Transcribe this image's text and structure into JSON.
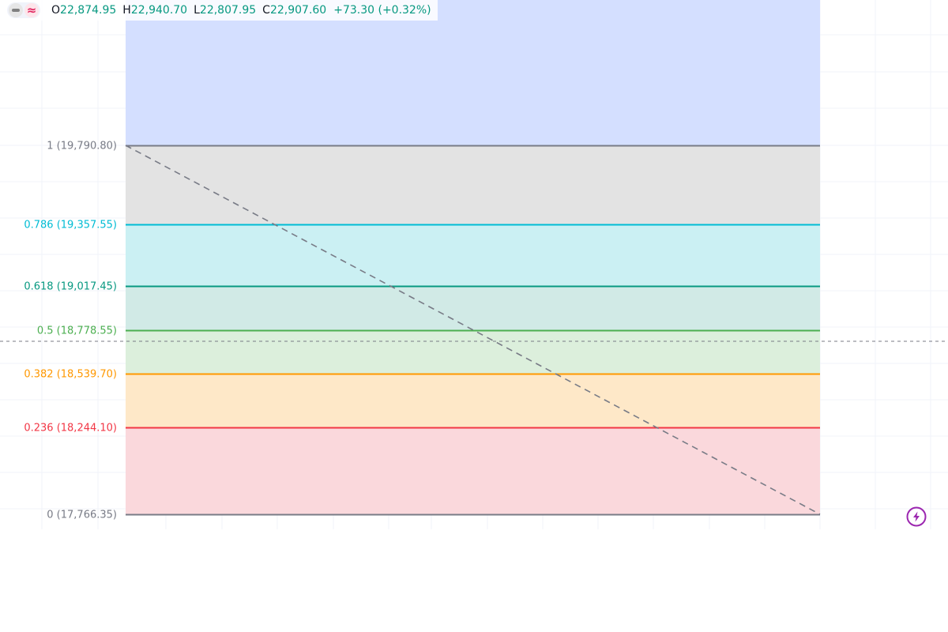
{
  "legend": {
    "open_key": "O",
    "open_val": "22,874.95",
    "high_key": "H",
    "high_val": "22,940.70",
    "low_key": "L",
    "low_val": "22,807.95",
    "close_key": "C",
    "close_val": "22,907.60",
    "change": "+73.30 (+0.32%)",
    "value_color": "#089981"
  },
  "fib_tool": {
    "name": "Fibonacci Retracement",
    "levels": [
      {
        "label": "1 (19,790.80)",
        "ratio": 1,
        "price": 19790.8,
        "line_color": "#787b86",
        "fill_color": "#e3e3e3",
        "text_color": "#787b86"
      },
      {
        "label": "0.786 (19,357.55)",
        "ratio": 0.786,
        "price": 19357.55,
        "line_color": "#00bcd4",
        "fill_color": "#cbf0f3",
        "text_color": "#00bcd4"
      },
      {
        "label": "0.618 (19,017.45)",
        "ratio": 0.618,
        "price": 19017.45,
        "line_color": "#089981",
        "fill_color": "#d1eae6",
        "text_color": "#089981"
      },
      {
        "label": "0.5 (18,778.55)",
        "ratio": 0.5,
        "price": 18778.55,
        "line_color": "#4caf50",
        "fill_color": "#dcefdc",
        "text_color": "#4caf50"
      },
      {
        "label": "0.382 (18,539.70)",
        "ratio": 0.382,
        "price": 18539.7,
        "line_color": "#ff9800",
        "fill_color": "#fee8c8",
        "text_color": "#ff9800"
      },
      {
        "label": "0.236 (18,244.10)",
        "ratio": 0.236,
        "price": 18244.1,
        "line_color": "#f23645",
        "fill_color": "#fad8dc",
        "text_color": "#f23645"
      },
      {
        "label": "0 (17,766.35)",
        "ratio": 0,
        "price": 17766.35,
        "line_color": "#787b86",
        "fill_color": null,
        "text_color": "#787b86"
      }
    ],
    "extension_fill_color": "#d4dfff",
    "trend_line_color": "#787b86"
  },
  "icons": {
    "hide_button": "hide-indicator-icon",
    "wave_button": "approx-wave-icon",
    "flash_button": "lightning-bolt-icon",
    "accent_color": "#9c27b0"
  }
}
